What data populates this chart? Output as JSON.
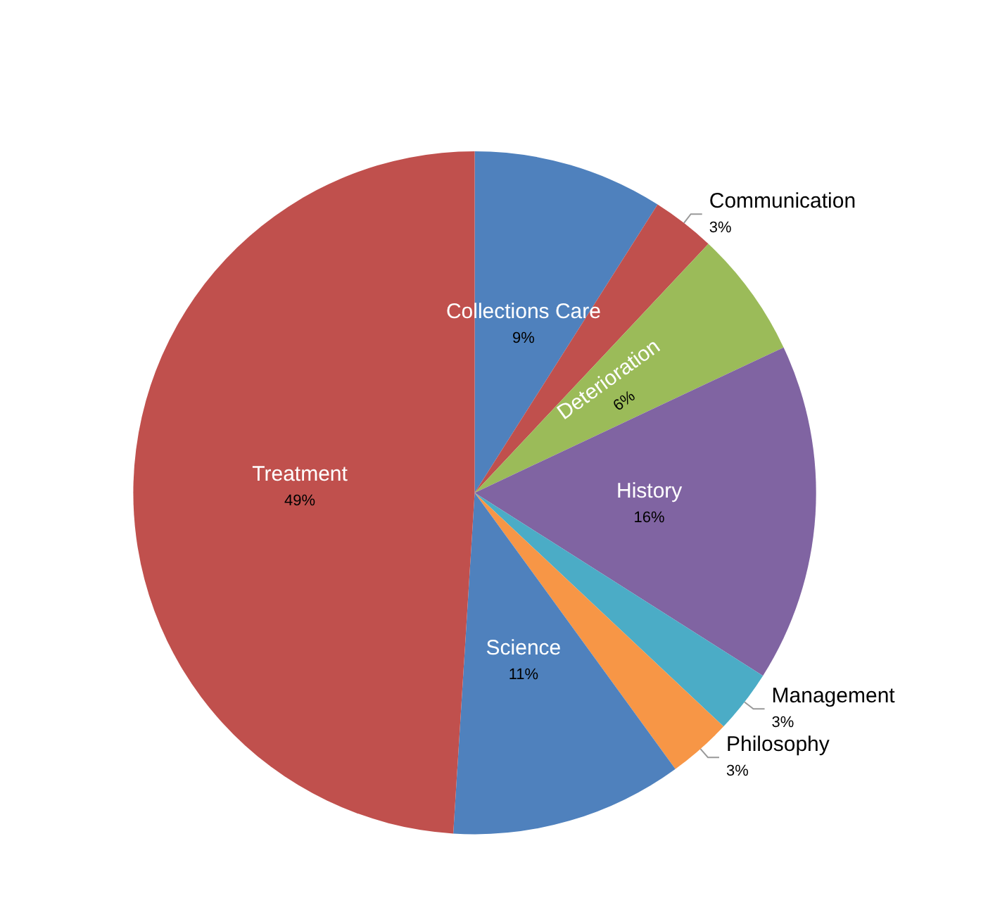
{
  "chart_data": {
    "type": "pie",
    "categories": [
      "Collections Care",
      "Communication",
      "Deterioration",
      "History",
      "Management",
      "Philosophy",
      "Science",
      "Treatment"
    ],
    "values": [
      9,
      3,
      6,
      16,
      3,
      3,
      11,
      49
    ],
    "value_labels": [
      "9%",
      "3%",
      "6%",
      "16%",
      "3%",
      "3%",
      "11%",
      "49%"
    ],
    "colors": [
      "#4f81bd",
      "#c0504d",
      "#9bbb59",
      "#8064a2",
      "#4bacc6",
      "#f79646",
      "#4f81bd",
      "#c0504d"
    ],
    "legend": false
  }
}
